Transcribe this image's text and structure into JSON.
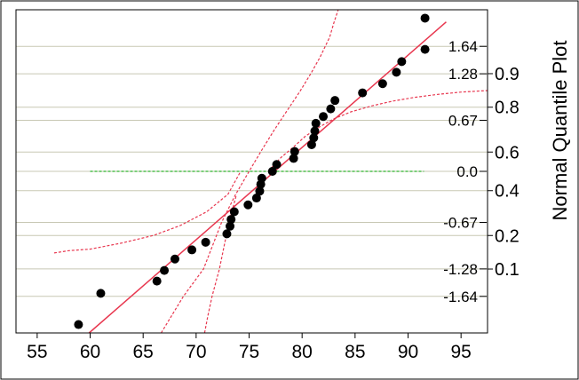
{
  "chart_data": {
    "type": "scatter",
    "title": "",
    "ylabel": "Normal Quantile Plot",
    "xlim": [
      53,
      97.5
    ],
    "ylim": [
      -2.12,
      2.12
    ],
    "x_ticks": [
      55,
      60,
      65,
      70,
      75,
      80,
      85,
      90,
      95
    ],
    "x_tick_labels": [
      "55",
      "60",
      "65",
      "70",
      "75",
      "80",
      "85",
      "90",
      "95"
    ],
    "quantile_ticks": [
      {
        "z": 1.64,
        "label": "1.64"
      },
      {
        "z": 1.28,
        "label": "1.28"
      },
      {
        "z": 0.67,
        "label": "0.67"
      },
      {
        "z": 0.0,
        "label": "0.0"
      },
      {
        "z": -0.67,
        "label": "-0.67"
      },
      {
        "z": -1.28,
        "label": "-1.28"
      },
      {
        "z": -1.64,
        "label": "-1.64"
      }
    ],
    "probability_ticks": [
      {
        "p": 0.9,
        "z": 1.2816,
        "label": "0.9"
      },
      {
        "p": 0.8,
        "z": 0.8416,
        "label": "0.8"
      },
      {
        "p": 0.6,
        "z": 0.2533,
        "label": "0.6"
      },
      {
        "p": 0.4,
        "z": -0.2533,
        "label": "0.4"
      },
      {
        "p": 0.2,
        "z": -0.8416,
        "label": "0.2"
      },
      {
        "p": 0.1,
        "z": -1.2816,
        "label": "0.1"
      }
    ],
    "gridlines_z": [
      1.64,
      1.28,
      0.67,
      0.2533,
      0.0,
      -0.2533,
      -0.67,
      -1.28,
      -1.64,
      0.8416,
      -0.8416
    ],
    "grid": true,
    "points": [
      {
        "x": 58.9,
        "z": -2.01
      },
      {
        "x": 61.0,
        "z": -1.6
      },
      {
        "x": 66.3,
        "z": -1.44
      },
      {
        "x": 67.0,
        "z": -1.3
      },
      {
        "x": 68.0,
        "z": -1.15
      },
      {
        "x": 69.6,
        "z": -1.03
      },
      {
        "x": 70.9,
        "z": -0.93
      },
      {
        "x": 72.9,
        "z": -0.82
      },
      {
        "x": 73.2,
        "z": -0.72
      },
      {
        "x": 73.3,
        "z": -0.63
      },
      {
        "x": 73.6,
        "z": -0.53
      },
      {
        "x": 74.9,
        "z": -0.44
      },
      {
        "x": 75.7,
        "z": -0.35
      },
      {
        "x": 76.0,
        "z": -0.26
      },
      {
        "x": 76.1,
        "z": -0.17
      },
      {
        "x": 76.2,
        "z": -0.09
      },
      {
        "x": 77.2,
        "z": 0.0
      },
      {
        "x": 77.6,
        "z": 0.09
      },
      {
        "x": 79.2,
        "z": 0.17
      },
      {
        "x": 79.3,
        "z": 0.26
      },
      {
        "x": 80.9,
        "z": 0.35
      },
      {
        "x": 81.1,
        "z": 0.44
      },
      {
        "x": 81.2,
        "z": 0.53
      },
      {
        "x": 81.3,
        "z": 0.63
      },
      {
        "x": 82.0,
        "z": 0.72
      },
      {
        "x": 82.7,
        "z": 0.82
      },
      {
        "x": 83.1,
        "z": 0.93
      },
      {
        "x": 85.7,
        "z": 1.03
      },
      {
        "x": 87.6,
        "z": 1.15
      },
      {
        "x": 88.9,
        "z": 1.3
      },
      {
        "x": 89.4,
        "z": 1.44
      },
      {
        "x": 91.6,
        "z": 1.6
      },
      {
        "x": 91.6,
        "z": 2.01
      }
    ],
    "fit_line": {
      "x": [
        59.9,
        93.6
      ],
      "z": [
        -2.12,
        1.96
      ]
    },
    "confidence_band_upper": {
      "x": [
        66.7,
        68.8,
        70.7,
        72.4,
        73.7,
        75.0,
        76.2,
        77.4,
        78.6,
        79.8,
        80.9,
        81.7,
        82.6,
        83.0,
        83.4
      ],
      "z": [
        -2.12,
        -1.64,
        -1.28,
        -0.67,
        -0.31,
        0.0,
        0.28,
        0.55,
        0.8,
        1.05,
        1.3,
        1.5,
        1.76,
        1.95,
        2.12
      ]
    },
    "confidence_band_lower": {
      "x": [
        56.6,
        58.0,
        60.0,
        63.0,
        66.0,
        68.5,
        71.0,
        73.0,
        74.2
      ],
      "z": [
        -1.07,
        -1.04,
        -1.02,
        -0.94,
        -0.84,
        -0.71,
        -0.53,
        -0.3,
        0.0
      ]
    },
    "confidence_band_lower_right": {
      "x": [
        76.8,
        78.0,
        79.2,
        80.3,
        81.6,
        83.0,
        84.6,
        86.6,
        88.5,
        90.6,
        92.8,
        95.0,
        97.5
      ],
      "z": [
        0.0,
        0.18,
        0.32,
        0.46,
        0.58,
        0.69,
        0.78,
        0.86,
        0.92,
        0.97,
        1.01,
        1.04,
        1.06
      ]
    },
    "confidence_band_upper_left": {
      "x": [
        70.8,
        71.1,
        71.5,
        72.2,
        73.1,
        73.8
      ],
      "z": [
        -2.12,
        -1.9,
        -1.64,
        -1.28,
        -0.67,
        -0.31
      ]
    },
    "reference_line_z": 0.0,
    "reference_line_x": [
      60.0,
      91.5
    ],
    "colors": {
      "point": "#000000",
      "fit_line": "#e8374f",
      "band": "#e8374f",
      "reference": "#2db52d",
      "grid": "#c8c8b4",
      "frame": "#000000"
    }
  }
}
